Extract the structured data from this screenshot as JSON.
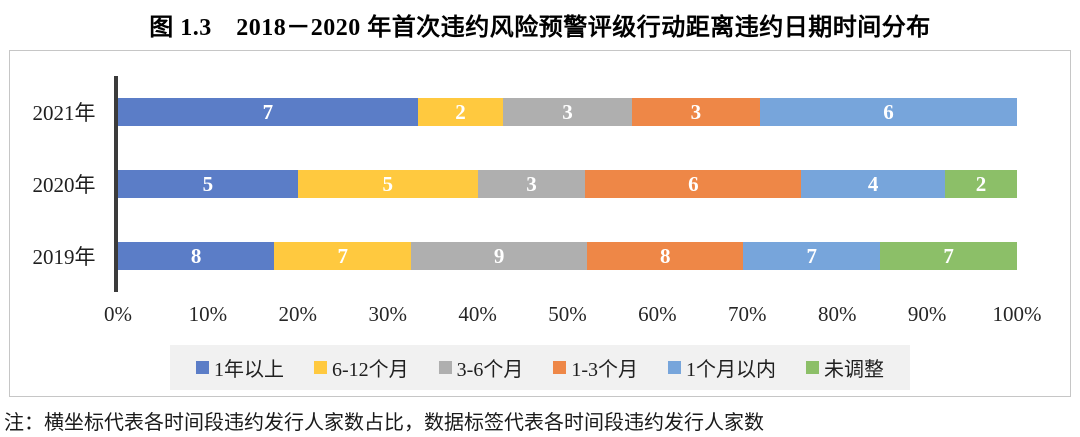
{
  "title": "图 1.3　2018－2020 年首次违约风险预警评级行动距离违约日期时间分布",
  "note": "注：横坐标代表各时间段违约发行人家数占比，数据标签代表各时间段违约发行人家数",
  "chart_data": {
    "type": "bar",
    "orientation": "horizontal",
    "stacked": true,
    "normalized_to_100pct": true,
    "title": "图 1.3　2018－2020 年首次违约风险预警评级行动距离违约日期时间分布",
    "categories": [
      "2021年",
      "2020年",
      "2019年"
    ],
    "series": [
      {
        "name": "1年以上",
        "color": "#5b7dc7",
        "values": [
          7,
          5,
          8
        ]
      },
      {
        "name": "6-12个月",
        "color": "#ffc93f",
        "values": [
          2,
          5,
          7
        ]
      },
      {
        "name": "3-6个月",
        "color": "#afafaf",
        "values": [
          3,
          3,
          9
        ]
      },
      {
        "name": "1-3个月",
        "color": "#ee8747",
        "values": [
          3,
          6,
          8
        ]
      },
      {
        "name": "1个月以内",
        "color": "#77a5db",
        "values": [
          6,
          4,
          7
        ]
      },
      {
        "name": "未调整",
        "color": "#8cbf68",
        "values": [
          0,
          2,
          7
        ]
      }
    ],
    "x_ticks": [
      "0%",
      "10%",
      "20%",
      "30%",
      "40%",
      "50%",
      "60%",
      "70%",
      "80%",
      "90%",
      "100%"
    ],
    "xlim": [
      0,
      100
    ],
    "xlabel": "",
    "ylabel": "",
    "grid": false,
    "legend_position": "bottom",
    "data_label_meaning": "各时间段违约发行人家数"
  }
}
